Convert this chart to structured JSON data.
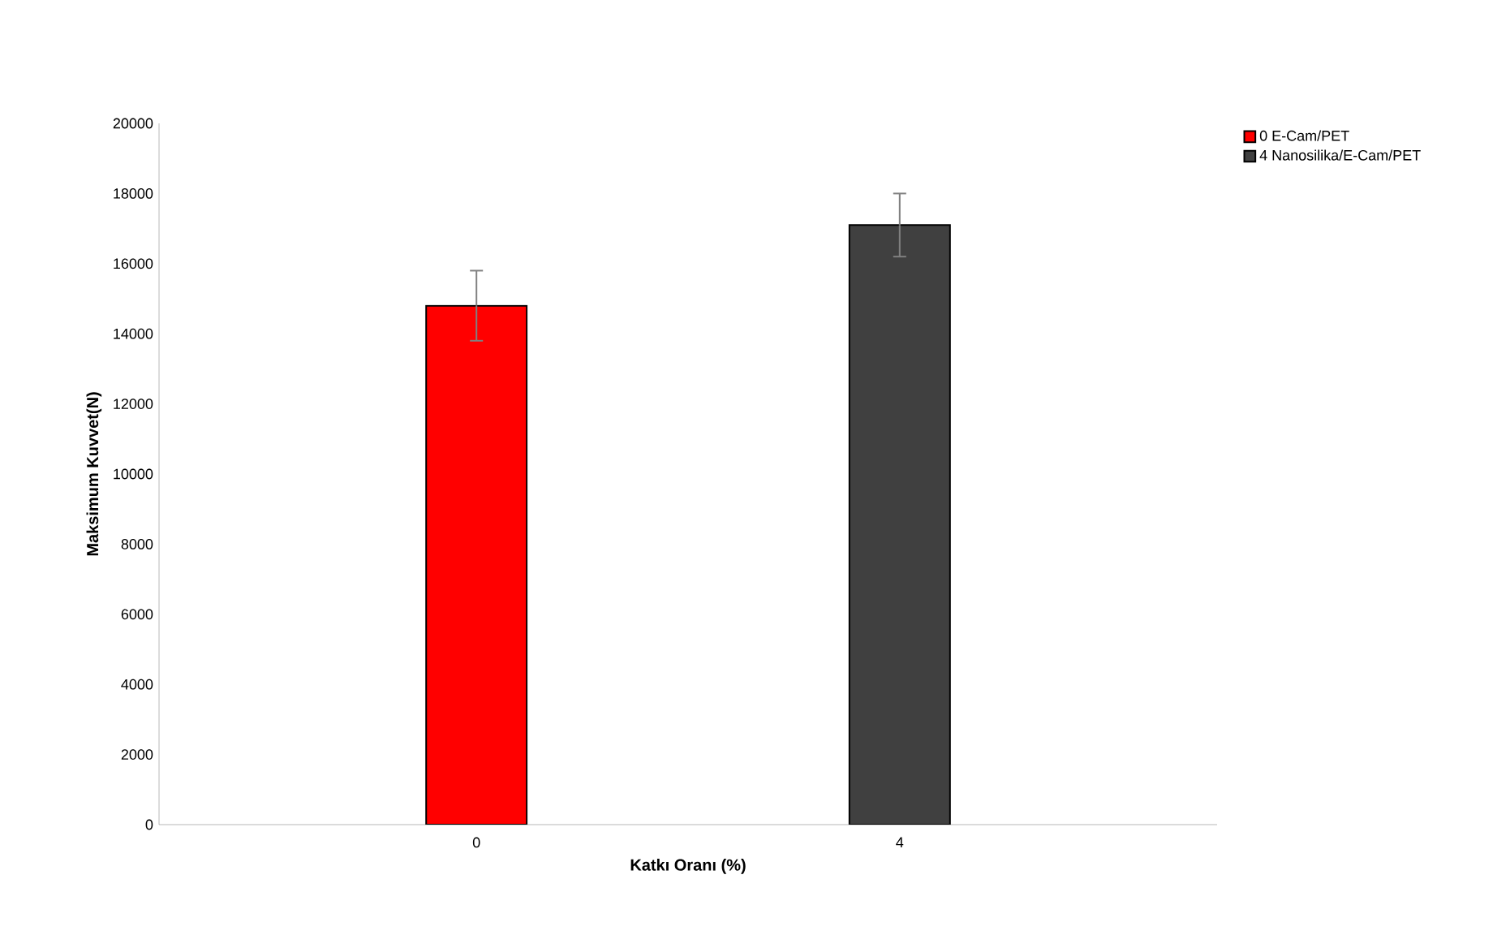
{
  "chart_data": {
    "type": "bar",
    "xlabel": "Katkı Oranı (%)",
    "ylabel": "Maksimum Kuvvet(N)",
    "categories": [
      "0",
      "4"
    ],
    "series": [
      {
        "name": "0 E-Cam/PET",
        "color": "#ff0000",
        "values": [
          14800,
          null
        ],
        "errors": [
          1000,
          null
        ]
      },
      {
        "name": "4 Nanosilika/E-Cam/PET",
        "color": "#404040",
        "values": [
          null,
          17100
        ],
        "errors": [
          null,
          900
        ]
      }
    ],
    "ylim": [
      0,
      20000
    ],
    "yticks": [
      0,
      2000,
      4000,
      6000,
      8000,
      10000,
      12000,
      14000,
      16000,
      18000,
      20000
    ],
    "grid": false,
    "legend": "top right"
  }
}
